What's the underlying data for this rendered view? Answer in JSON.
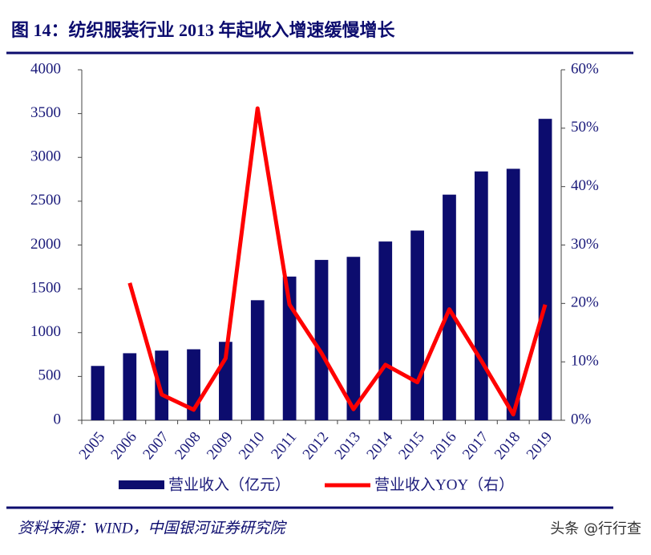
{
  "chart_data": {
    "type": "bar",
    "title": "图 14：纺织服装行业 2013 年起收入增速缓慢增长",
    "categories": [
      "2005",
      "2006",
      "2007",
      "2008",
      "2009",
      "2010",
      "2011",
      "2012",
      "2013",
      "2014",
      "2015",
      "2016",
      "2017",
      "2018",
      "2019"
    ],
    "series": [
      {
        "name": "营业收入（亿元）",
        "type": "bar",
        "color": "#0c0c6e",
        "values": [
          620,
          765,
          795,
          810,
          895,
          1370,
          1640,
          1830,
          1865,
          2040,
          2165,
          2575,
          2840,
          2870,
          3440
        ]
      },
      {
        "name": "营业收入YOY（右）",
        "type": "line",
        "axis": "y2",
        "color": "#ff0000",
        "values": [
          null,
          23.5,
          4.4,
          1.8,
          10.6,
          53.4,
          19.8,
          11.5,
          1.9,
          9.5,
          6.5,
          19,
          10.2,
          1,
          19.8
        ]
      }
    ],
    "ylim": [
      0,
      4000
    ],
    "yticks": [
      0,
      500,
      1000,
      1500,
      2000,
      2500,
      3000,
      3500,
      4000
    ],
    "y2lim": [
      0,
      60
    ],
    "y2ticks": [
      {
        "value": 0,
        "label": "0%"
      },
      {
        "value": 10,
        "label": "10%"
      },
      {
        "value": 20,
        "label": "20%"
      },
      {
        "value": 30,
        "label": "30%"
      },
      {
        "value": 40,
        "label": "40%"
      },
      {
        "value": 50,
        "label": "50%"
      },
      {
        "value": 60,
        "label": "60%"
      }
    ]
  },
  "source": "资料来源：WIND，中国银河证券研究院",
  "watermark": "头条 @行行查"
}
